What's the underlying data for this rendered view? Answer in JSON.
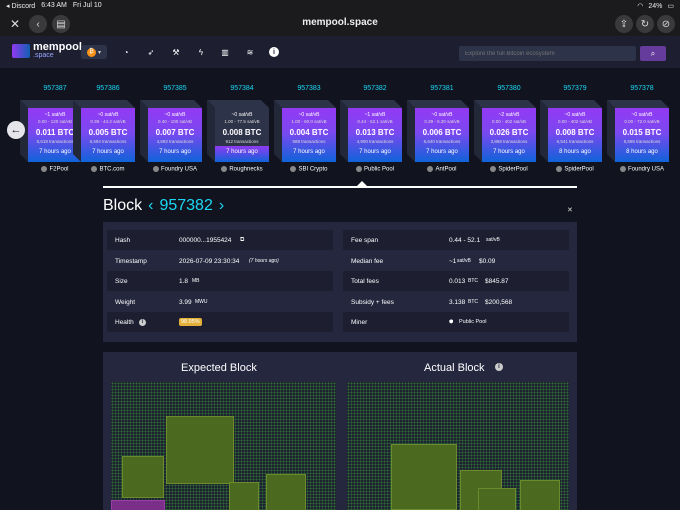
{
  "status_bar": {
    "app": "◂ Discord",
    "time": "6:43 AM",
    "date": "Fri Jul 10",
    "battery": "24%"
  },
  "browser": {
    "title": "mempool.space"
  },
  "nav": {
    "logo_top": "mempool",
    "logo_bottom": ".space",
    "search_placeholder": "Explore the full Bitcoin ecosystem"
  },
  "blocks": [
    {
      "height": "957387",
      "fee": "~1 sat/vB",
      "range": "0.00 - 120 sat/vB",
      "size": "0.011 BTC",
      "txs": "5,618 transactions",
      "ago": "7 hours ago",
      "pool": "F2Pool"
    },
    {
      "height": "957386",
      "fee": "~0 sat/vB",
      "range": "0.39 - 44.2 sat/vB",
      "size": "0.005 BTC",
      "txs": "6,594 transactions",
      "ago": "7 hours ago",
      "pool": "BTC.com"
    },
    {
      "height": "957385",
      "fee": "~0 sat/vB",
      "range": "0.40 - 100 sat/vB",
      "size": "0.007 BTC",
      "txs": "4,692 transactions",
      "ago": "7 hours ago",
      "pool": "Foundry USA"
    },
    {
      "height": "957384",
      "fee": "~0 sat/vB",
      "range": "1.00 - 77.5 sat/vB",
      "size": "0.008 BTC",
      "txs": "912 transactions",
      "ago": "7 hours ago",
      "pool": "Roughnecks"
    },
    {
      "height": "957383",
      "fee": "~0 sat/vB",
      "range": "1.00 - 60.0 sat/vB",
      "size": "0.004 BTC",
      "txs": "588 transactions",
      "ago": "7 hours ago",
      "pool": "SBI Crypto"
    },
    {
      "height": "957382",
      "fee": "~1 sat/vB",
      "range": "0.44 - 52.1 sat/vB",
      "size": "0.013 BTC",
      "txs": "4,900 transactions",
      "ago": "7 hours ago",
      "pool": "Public Pool"
    },
    {
      "height": "957381",
      "fee": "~0 sat/vB",
      "range": "0.39 - 5.30 sat/vB",
      "size": "0.006 BTC",
      "txs": "6,640 transactions",
      "ago": "7 hours ago",
      "pool": "AntPool"
    },
    {
      "height": "957380",
      "fee": "~2 sat/vB",
      "range": "0.00 - 402 sat/vB",
      "size": "0.026 BTC",
      "txs": "3,868 transactions",
      "ago": "7 hours ago",
      "pool": "SpiderPool"
    },
    {
      "height": "957379",
      "fee": "~0 sat/vB",
      "range": "0.00 - 402 sat/vB",
      "size": "0.008 BTC",
      "txs": "6,541 transactions",
      "ago": "8 hours ago",
      "pool": "SpiderPool"
    },
    {
      "height": "957378",
      "fee": "~0 sat/vB",
      "range": "0.00 - 72.0 sat/vB",
      "size": "0.015 BTC",
      "txs": "5,595 transactions",
      "ago": "8 hours ago",
      "pool": "Foundry USA"
    }
  ],
  "block": {
    "label": "Block",
    "number": "957382",
    "hash_label": "Hash",
    "hash": "000000...1955424",
    "timestamp_label": "Timestamp",
    "timestamp": "2026-07-09 23:30:34",
    "timestamp_ago": "(7 hours ago)",
    "size_label": "Size",
    "size": "1.8",
    "size_unit": "MB",
    "weight_label": "Weight",
    "weight": "3.99",
    "weight_unit": "MWU",
    "health_label": "Health",
    "health": "98.95%",
    "feespan_label": "Fee span",
    "feespan": "0.44 - 52.1",
    "feespan_unit": "sat/vB",
    "medianfee_label": "Median fee",
    "medianfee": "~1",
    "medianfee_unit": "sat/vB",
    "medianfee_usd": "$0.09",
    "totalfees_label": "Total fees",
    "totalfees": "0.013",
    "totalfees_unit": "BTC",
    "totalfees_usd": "$845.87",
    "subsidy_label": "Subsidy + fees",
    "subsidy": "3.138",
    "subsidy_unit": "BTC",
    "subsidy_usd": "$200,568",
    "miner_label": "Miner",
    "miner": "Public Pool"
  },
  "visual": {
    "expected_title": "Expected Block",
    "actual_title": "Actual Block"
  }
}
